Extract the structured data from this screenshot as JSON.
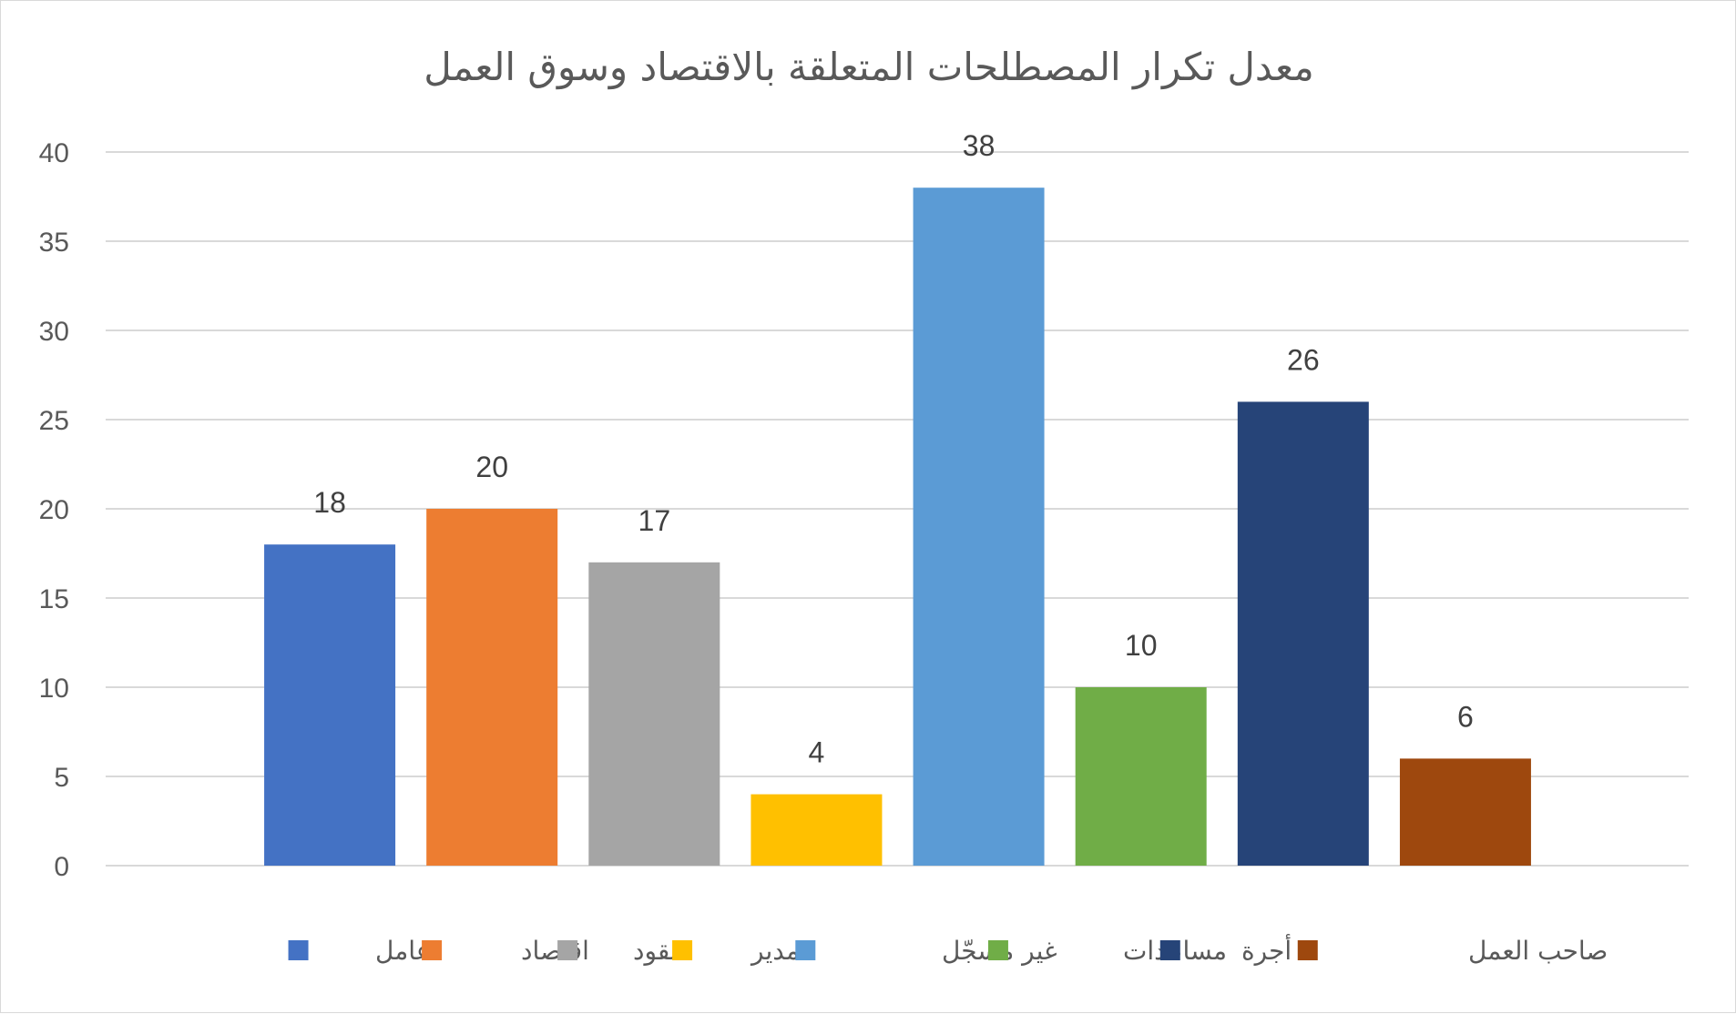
{
  "chart_data": {
    "type": "bar",
    "title": "معدل تكرار المصطلحات المتعلقة بالاقتصاد وسوق العمل",
    "xlabel": "",
    "ylabel": "",
    "ylim": [
      0,
      40
    ],
    "yticks": [
      "0",
      "5",
      "10",
      "15",
      "20",
      "25",
      "30",
      "35",
      "40"
    ],
    "grid": true,
    "legend_position": "bottom",
    "series": [
      {
        "name": "عامل",
        "values": [
          18
        ],
        "color": "#4472C4"
      },
      {
        "name": "اقتصاد",
        "values": [
          20
        ],
        "color": "#ED7D31"
      },
      {
        "name": "نقود",
        "values": [
          17
        ],
        "color": "#A5A5A5"
      },
      {
        "name": "مدير",
        "values": [
          4
        ],
        "color": "#FFC000"
      },
      {
        "name": "غير مسجّل",
        "values": [
          38
        ],
        "color": "#5B9BD5"
      },
      {
        "name": "مساعدات",
        "values": [
          10
        ],
        "color": "#70AD47"
      },
      {
        "name": "أجرة",
        "values": [
          26
        ],
        "color": "#264478"
      },
      {
        "name": "صاحب العمل",
        "values": [
          6
        ],
        "color": "#9E480E"
      }
    ]
  }
}
